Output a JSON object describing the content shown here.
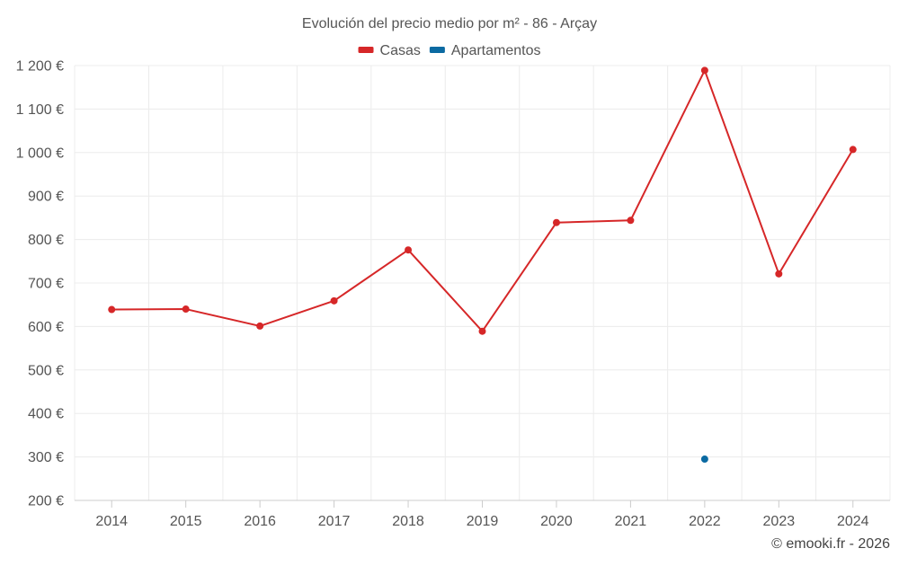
{
  "chart_data": {
    "type": "line",
    "title": "Evolución del precio medio por m² - 86 - Arçay",
    "xlabel": "",
    "ylabel": "",
    "categories": [
      "2014",
      "2015",
      "2016",
      "2017",
      "2018",
      "2019",
      "2020",
      "2021",
      "2022",
      "2023",
      "2024"
    ],
    "ylim": [
      200,
      1200
    ],
    "yticks": [
      200,
      300,
      400,
      500,
      600,
      700,
      800,
      900,
      1000,
      1100,
      1200
    ],
    "ytick_labels": [
      "200 €",
      "300 €",
      "400 €",
      "500 €",
      "600 €",
      "700 €",
      "800 €",
      "900 €",
      "1 000 €",
      "1 100 €",
      "1 200 €"
    ],
    "grid": true,
    "legend_position": "top-center",
    "series": [
      {
        "name": "Casas",
        "color": "#d62728",
        "values": [
          639,
          640,
          601,
          659,
          776,
          589,
          839,
          844,
          1189,
          721,
          1007
        ]
      },
      {
        "name": "Apartamentos",
        "color": "#0b6aa2",
        "values": [
          null,
          null,
          null,
          null,
          null,
          null,
          null,
          null,
          295,
          null,
          null
        ]
      }
    ]
  },
  "credit": "© emooki.fr - 2026"
}
